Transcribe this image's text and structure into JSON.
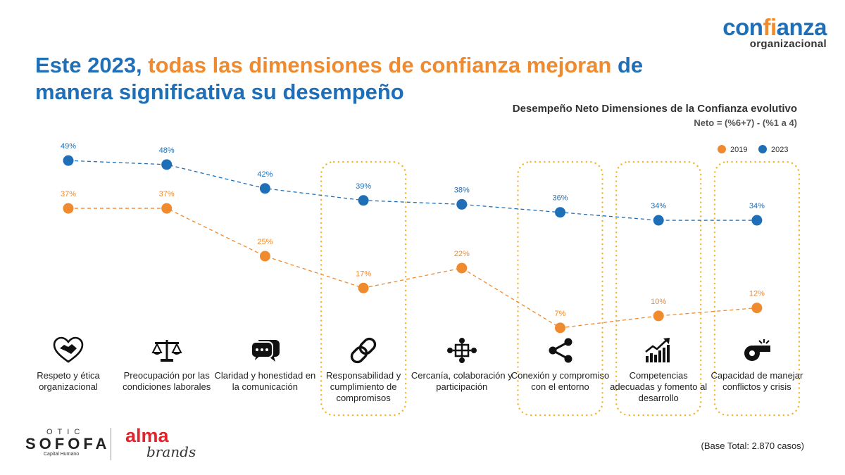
{
  "headline": {
    "part1": "Este 2023, ",
    "part2": "todas las dimensiones de confianza mejoran",
    "part3": " de manera significativa su desempeño"
  },
  "brand": {
    "word_start": "con",
    "word_highlight": "fi",
    "word_end": "anza",
    "subtitle": "organizacional"
  },
  "chart_title": "Desempeño Neto Dimensiones de la Confianza evolutivo",
  "chart_subtitle": "Neto = (%6+7) - (%1 a 4)",
  "footer": {
    "otic_top": "OTIC",
    "otic_main": "SOFOFA",
    "otic_sub": "Capital Humano",
    "alma_top": "alma",
    "alma_bottom": "brands",
    "base_note": "(Base Total: 2.870 casos)"
  },
  "colors": {
    "c2019": "#ef8a2e",
    "c2023": "#1e6fb8",
    "highlight_box": "#f2b52a"
  },
  "icons": [
    "handshake-heart-icon",
    "scales-icon",
    "chat-bubbles-icon",
    "link-icon",
    "people-network-icon",
    "share-icon",
    "growth-chart-icon",
    "whistle-icon"
  ],
  "categories": [
    "Respeto y ética organizacional",
    "Preocupación por las condiciones laborales",
    "Claridad y honestidad en la comunicación",
    "Responsabilidad y cumplimiento de compromisos",
    "Cercanía, colaboración y participación",
    "Conexión y compromiso con el entorno",
    "Competencias adecuadas y fomento al desarrollo",
    "Capacidad de manejar conflictos y crisis"
  ],
  "chart_data": {
    "type": "line",
    "title": "Desempeño Neto Dimensiones de la Confianza evolutivo",
    "subtitle": "Neto = (%6+7) - (%1 a 4)",
    "categories": [
      "Respeto y ética organizacional",
      "Preocupación por las condiciones laborales",
      "Claridad y honestidad en la comunicación",
      "Responsabilidad y cumplimiento de compromisos",
      "Cercanía, colaboración y participación",
      "Conexión y compromiso con el entorno",
      "Competencias adecuadas y fomento al desarrollo",
      "Capacidad de manejar conflictos y crisis"
    ],
    "series": [
      {
        "name": "2019",
        "values": [
          37,
          37,
          25,
          17,
          22,
          7,
          10,
          12
        ],
        "labels": [
          "37%",
          "37%",
          "25%",
          "17%",
          "22%",
          "7%",
          "10%",
          "12%"
        ]
      },
      {
        "name": "2023",
        "values": [
          49,
          48,
          42,
          39,
          38,
          36,
          34,
          34
        ],
        "labels": [
          "49%",
          "48%",
          "42%",
          "39%",
          "38%",
          "36%",
          "34%",
          "34%"
        ]
      }
    ],
    "highlighted_categories": [
      3,
      5,
      6,
      7
    ],
    "legend_position": "top-right",
    "line_style": "dashed",
    "grid": false
  }
}
